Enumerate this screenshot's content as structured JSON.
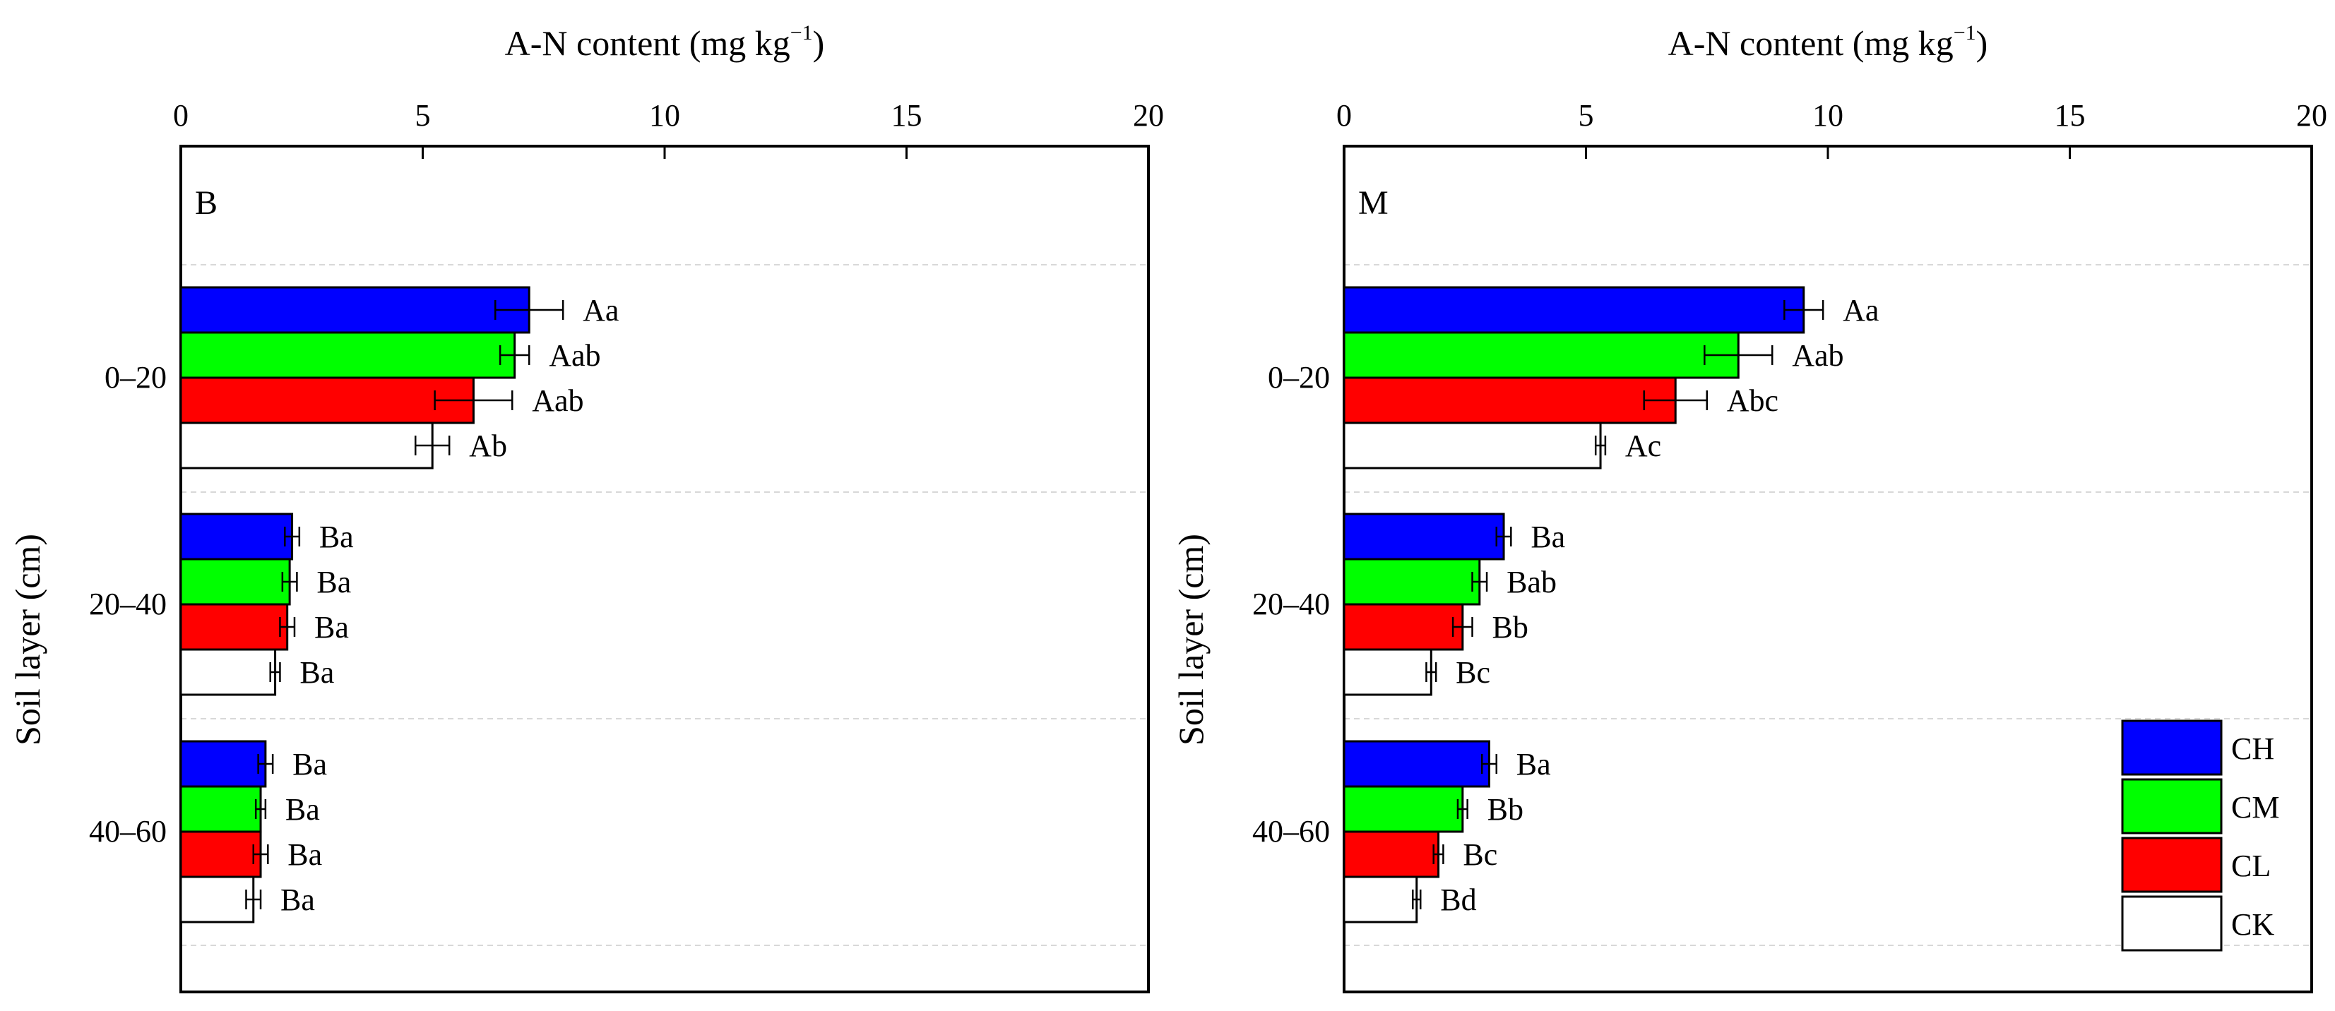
{
  "colors": {
    "CH": "#0000ff",
    "CM": "#00ff00",
    "CL": "#ff0000",
    "CK": "#ffffff"
  },
  "legend": {
    "items": [
      "CH",
      "CM",
      "CL",
      "CK"
    ],
    "position": "bottom-right of panel M"
  },
  "chart_data": [
    {
      "type": "bar",
      "orientation": "horizontal",
      "panel_label": "B",
      "xlabel_main": "A-N content (mg kg",
      "xlabel_sup": "−1",
      "xlabel_close": ")",
      "ylabel": "Soil layer (cm)",
      "xlim": [
        0,
        20
      ],
      "xticks": [
        "0",
        "5",
        "10",
        "15",
        "20"
      ],
      "categories": [
        "0–20",
        "20–40",
        "40–60"
      ],
      "series": [
        {
          "name": "CH",
          "values": [
            7.2,
            2.3,
            1.75
          ],
          "errors": [
            0.7,
            0.15,
            0.15
          ],
          "labels": [
            "Aa",
            "Ba",
            "Ba"
          ]
        },
        {
          "name": "CM",
          "values": [
            6.9,
            2.25,
            1.65
          ],
          "errors": [
            0.3,
            0.15,
            0.1
          ],
          "labels": [
            "Aab",
            "Ba",
            "Ba"
          ]
        },
        {
          "name": "CL",
          "values": [
            6.05,
            2.2,
            1.65
          ],
          "errors": [
            0.8,
            0.15,
            0.15
          ],
          "labels": [
            "Aab",
            "Ba",
            "Ba"
          ]
        },
        {
          "name": "CK",
          "values": [
            5.2,
            1.95,
            1.5
          ],
          "errors": [
            0.35,
            0.1,
            0.15
          ],
          "labels": [
            "Ab",
            "Ba",
            "Ba"
          ]
        }
      ]
    },
    {
      "type": "bar",
      "orientation": "horizontal",
      "panel_label": "M",
      "xlabel_main": "A-N content (mg kg",
      "xlabel_sup": "−1",
      "xlabel_close": ")",
      "ylabel": "Soil layer (cm)",
      "xlim": [
        0,
        20
      ],
      "xticks": [
        "0",
        "5",
        "10",
        "15",
        "20"
      ],
      "categories": [
        "0–20",
        "20–40",
        "40–60"
      ],
      "series": [
        {
          "name": "CH",
          "values": [
            9.5,
            3.3,
            3.0
          ],
          "errors": [
            0.4,
            0.15,
            0.15
          ],
          "labels": [
            "Aa",
            "Ba",
            "Ba"
          ]
        },
        {
          "name": "CM",
          "values": [
            8.15,
            2.8,
            2.45
          ],
          "errors": [
            0.7,
            0.15,
            0.1
          ],
          "labels": [
            "Aab",
            "Bab",
            "Bb"
          ]
        },
        {
          "name": "CL",
          "values": [
            6.85,
            2.45,
            1.95
          ],
          "errors": [
            0.65,
            0.2,
            0.1
          ],
          "labels": [
            "Abc",
            "Bb",
            "Bc"
          ]
        },
        {
          "name": "CK",
          "values": [
            5.3,
            1.8,
            1.5
          ],
          "errors": [
            0.1,
            0.1,
            0.08
          ],
          "labels": [
            "Ac",
            "Bc",
            "Bd"
          ]
        }
      ]
    }
  ]
}
